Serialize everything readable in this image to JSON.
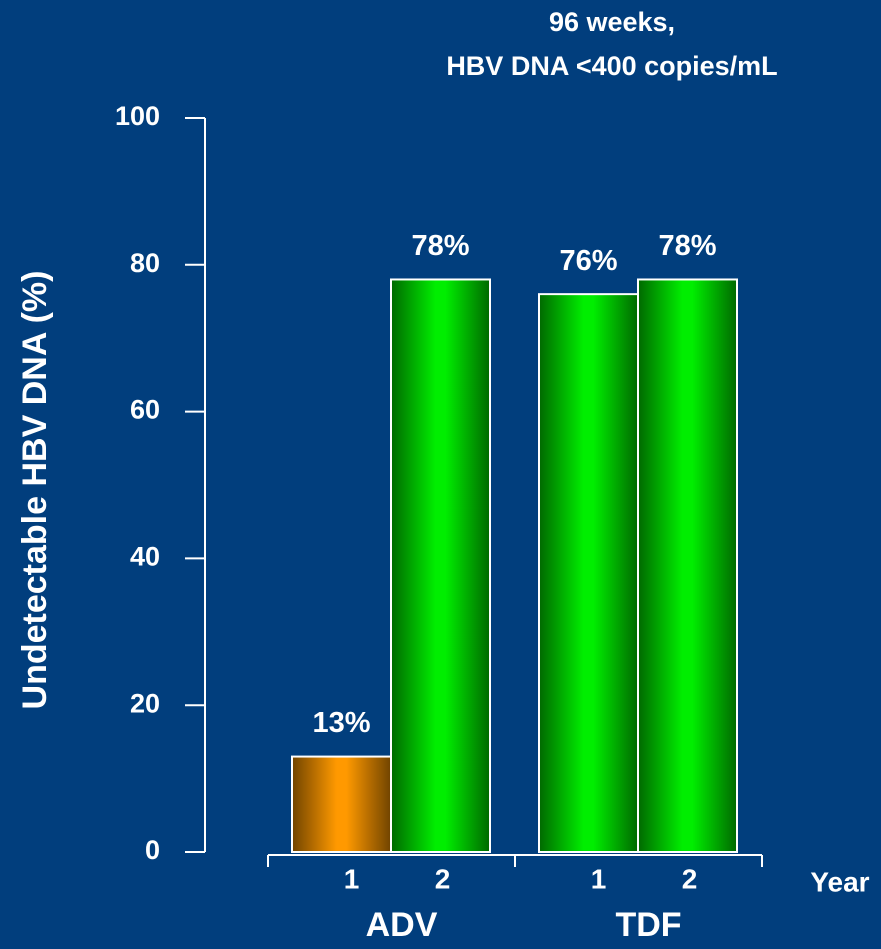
{
  "chart_data": {
    "type": "bar",
    "title": "96 weeks,",
    "subtitle": "HBV DNA <400 copies/mL",
    "y_label": "Undetectable HBV DNA (%)",
    "x_label": "Year",
    "groups": [
      "ADV",
      "TDF"
    ],
    "categories": [
      "1",
      "2",
      "1",
      "2"
    ],
    "values": [
      13,
      78,
      76,
      78
    ],
    "value_labels": [
      "13%",
      "78%",
      "76%",
      "78%"
    ],
    "colors": [
      "#ff9900",
      "#00ee00",
      "#00ee00",
      "#00ee00"
    ],
    "ylim": [
      0,
      100
    ],
    "yticks": [
      0,
      20,
      40,
      60,
      80,
      100
    ]
  }
}
